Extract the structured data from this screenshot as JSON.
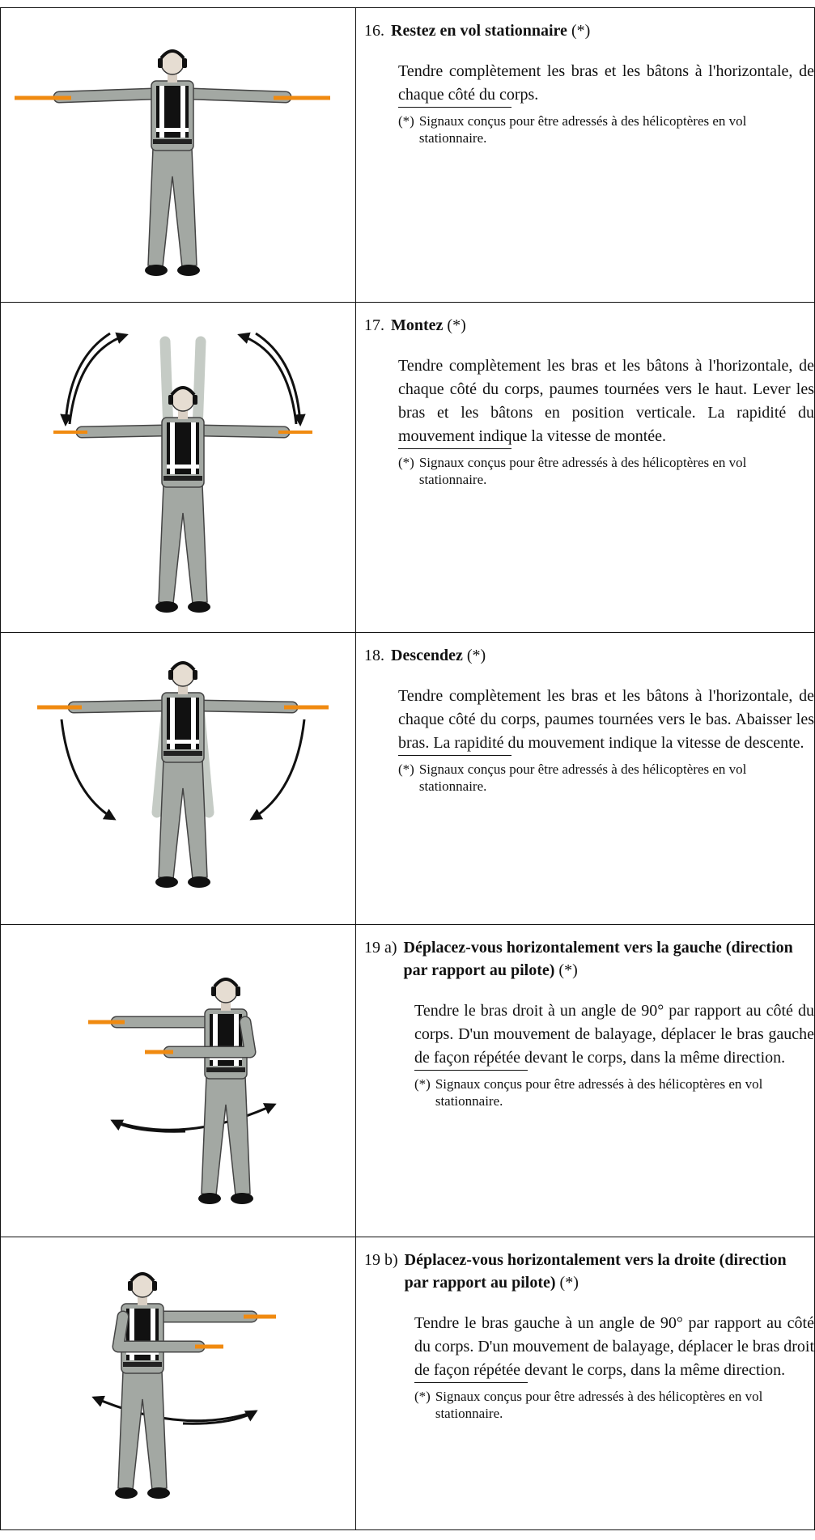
{
  "rows": [
    {
      "number": "16.",
      "title": "Restez en vol stationnaire",
      "mark": "(*)",
      "body": "Tendre complètement les bras et les bâtons à l'horizontale, de chaque côté du corps.",
      "note_mark": "(*)",
      "note": "Signaux conçus pour être adressés à des hélicoptères en vol stationnaire."
    },
    {
      "number": "17.",
      "title": "Montez",
      "mark": "(*)",
      "body": "Tendre complètement les bras et les bâtons à l'horizontale, de chaque côté du corps, paumes tournées vers le haut. Lever les bras et les bâtons en position verticale. La rapidité du mouvement indique la vitesse de montée.",
      "note_mark": "(*)",
      "note": "Signaux conçus pour être adressés à des hélicoptères en vol stationnaire."
    },
    {
      "number": "18.",
      "title": "Descendez",
      "mark": "(*)",
      "body": "Tendre complètement les bras et les bâtons à l'horizontale, de chaque côté du corps, paumes tournées vers le bas. Abaisser les bras. La rapidité du mouvement indique la vitesse de descente.",
      "note_mark": "(*)",
      "note": "Signaux conçus pour être adressés à des hélicoptères en vol stationnaire."
    },
    {
      "number": "19 a)",
      "title": "Déplacez-vous horizontalement vers la gauche (direction par rapport au pilote)",
      "mark": "(*)",
      "body": "Tendre le bras droit à un angle de 90° par rapport au côté du corps. D'un mouvement de balayage, déplacer le bras gauche de façon répétée devant le corps, dans la même direction.",
      "note_mark": "(*)",
      "note": "Signaux conçus pour être adressés à des hélicoptères en vol stationnaire."
    },
    {
      "number": "19 b)",
      "title": "Déplacez-vous horizontalement vers la droite (direction par rapport au pilote)",
      "mark": "(*)",
      "body": "Tendre le bras gauche à un angle de 90° par rapport au côté du corps. D'un mouvement de balayage, déplacer le bras droit de façon répétée devant le corps, dans la même direction.",
      "note_mark": "(*)",
      "note": "Signaux conçus pour être adressés à des hélicoptères en vol stationnaire."
    }
  ]
}
